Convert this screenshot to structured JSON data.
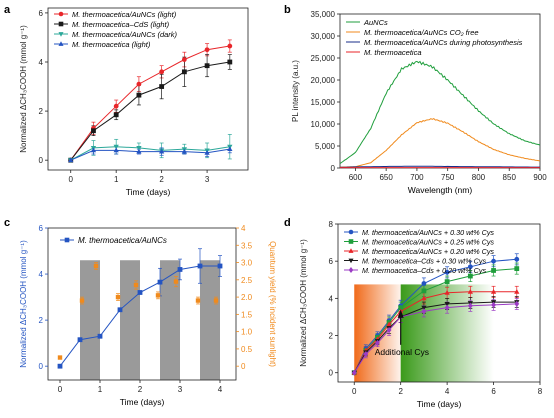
{
  "figure": {
    "panels": [
      {
        "letter": "a",
        "xlabel": "Time (days)",
        "ylabel": "Normalized ΔCH₃COOH (mmol g⁻¹)"
      },
      {
        "letter": "b",
        "xlabel": "Wavelength (nm)",
        "ylabel": "PL intensity (a.u.)"
      },
      {
        "letter": "c",
        "xlabel": "Time (days)",
        "ylabel": "Normalized ΔCH₃COOH (mmol g⁻¹)",
        "y2label": "Quantum yield (% incident sunlight)"
      },
      {
        "letter": "d",
        "xlabel": "Time (days)",
        "ylabel": "Normalized ΔCH₃COOH (mmol g⁻¹)",
        "annotation": "Additional Cys"
      }
    ]
  },
  "chart_data": [
    {
      "panel": "a",
      "type": "line",
      "xlabel": "Time (days)",
      "ylabel": "Normalized ΔCH₃COOH (mmol g⁻¹)",
      "xlim": [
        -0.5,
        3.9
      ],
      "ylim": [
        -0.4,
        6.2
      ],
      "xticks": [
        0,
        1,
        2,
        3
      ],
      "yticks": [
        0,
        2,
        4,
        6
      ],
      "legend_position": "top-left",
      "series": [
        {
          "name": "M. thermoacetica/AuNCs (light)",
          "color": "#e8262a",
          "marker": "circle",
          "x": [
            0,
            0.5,
            1,
            1.5,
            2,
            2.5,
            3,
            3.5
          ],
          "y": [
            0,
            1.3,
            2.2,
            3.1,
            3.6,
            4.1,
            4.5,
            4.65
          ],
          "err": [
            0,
            0.25,
            0.25,
            0.3,
            0.25,
            0.3,
            0.25,
            0.25
          ]
        },
        {
          "name": "M. thermoacetica–CdS (light)",
          "color": "#1a1a1a",
          "marker": "square",
          "x": [
            0,
            0.5,
            1,
            1.5,
            2,
            2.5,
            3,
            3.5
          ],
          "y": [
            0,
            1.2,
            1.85,
            2.65,
            3.0,
            3.6,
            3.85,
            4.0
          ],
          "err": [
            0,
            0.2,
            0.2,
            0.4,
            0.5,
            0.6,
            0.45,
            0.3
          ]
        },
        {
          "name": "M. thermoacetica/AuNCs (dark)",
          "color": "#2ca89a",
          "marker": "triangle-down",
          "x": [
            0,
            0.5,
            1,
            1.5,
            2,
            2.5,
            3,
            3.5
          ],
          "y": [
            0,
            0.5,
            0.55,
            0.5,
            0.4,
            0.45,
            0.4,
            0.55
          ],
          "err": [
            0,
            0.3,
            0.3,
            0.2,
            0.3,
            0.2,
            0.3,
            0.5
          ]
        },
        {
          "name": "M. thermoacetica (light)",
          "color": "#2454c2",
          "marker": "triangle-up",
          "x": [
            0,
            0.5,
            1,
            1.5,
            2,
            2.5,
            3,
            3.5
          ],
          "y": [
            0,
            0.4,
            0.4,
            0.35,
            0.35,
            0.35,
            0.3,
            0.45
          ],
          "err": [
            0,
            0.15,
            0.15,
            0.1,
            0.15,
            0.1,
            0.15,
            0.15
          ]
        }
      ]
    },
    {
      "panel": "b",
      "type": "line",
      "xlabel": "Wavelength (nm)",
      "ylabel": "PL intensity (a.u.)",
      "xlim": [
        575,
        900
      ],
      "ylim": [
        0,
        35000
      ],
      "xticks": [
        600,
        650,
        700,
        750,
        800,
        850,
        900
      ],
      "yticks": [
        0,
        5000,
        10000,
        15000,
        20000,
        25000,
        30000,
        35000
      ],
      "ytick_labels": [
        "0",
        "5,000",
        "10,000",
        "15,000",
        "20,000",
        "25,000",
        "30,000",
        "35,000"
      ],
      "legend_position": "top-left",
      "series": [
        {
          "name": "AuNCs",
          "color": "#1f9e3c",
          "x": [
            575,
            600,
            625,
            650,
            675,
            700,
            725,
            750,
            775,
            800,
            825,
            850,
            875,
            900
          ],
          "y": [
            1000,
            3500,
            9000,
            17000,
            22500,
            24200,
            23000,
            20000,
            16500,
            13000,
            10000,
            7800,
            6200,
            5200
          ]
        },
        {
          "name": "M. thermoacetica/AuNCs CO₂ free",
          "color": "#f08a1c",
          "x": [
            575,
            600,
            625,
            650,
            675,
            700,
            725,
            750,
            775,
            800,
            825,
            850,
            875,
            900
          ],
          "y": [
            200,
            300,
            1200,
            4000,
            7500,
            10300,
            11200,
            10200,
            8200,
            6000,
            4200,
            3000,
            2200,
            1600
          ]
        },
        {
          "name": "M. thermoacetica/AuNCs during photosynthesis",
          "color": "#1a2e8a",
          "x": [
            575,
            600,
            650,
            700,
            750,
            800,
            850,
            900
          ],
          "y": [
            150,
            250,
            350,
            400,
            350,
            300,
            250,
            200
          ]
        },
        {
          "name": "M. thermoacetica",
          "color": "#e8262a",
          "x": [
            575,
            600,
            650,
            700,
            750,
            800,
            850,
            900
          ],
          "y": [
            100,
            100,
            100,
            100,
            100,
            100,
            100,
            100
          ]
        }
      ]
    },
    {
      "panel": "c",
      "type": "line",
      "xlabel": "Time (days)",
      "ylabel": "Normalized ΔCH₃COOH (mmol g⁻¹)",
      "y2label": "Quantum yield (% incident sunlight)",
      "xlim": [
        -0.3,
        4.4
      ],
      "ylim": [
        -0.6,
        6.0
      ],
      "y2lim": [
        -0.4,
        4.0
      ],
      "xticks": [
        0,
        1,
        2,
        3,
        4
      ],
      "yticks": [
        0,
        2,
        4,
        6
      ],
      "y2ticks": [
        0,
        0.5,
        1.0,
        1.5,
        2.0,
        2.5,
        3.0,
        3.5,
        4.0
      ],
      "y2tick_labels": [
        "0",
        "0.5",
        "1.0",
        "1.5",
        "2.0",
        "2.5",
        "3.0",
        "3.5",
        "4"
      ],
      "light_periods": [
        [
          0.5,
          1.0
        ],
        [
          1.5,
          2.0
        ],
        [
          2.5,
          3.0
        ],
        [
          3.5,
          4.0
        ]
      ],
      "legend_position": "top-left",
      "series": [
        {
          "name": "M. thermoacetica/AuNCs",
          "color": "#2454c2",
          "marker": "square",
          "axis": "left",
          "x": [
            0,
            0.5,
            1,
            1.5,
            2,
            2.5,
            3,
            3.5,
            4
          ],
          "y": [
            0,
            1.15,
            1.3,
            2.45,
            3.2,
            3.65,
            4.2,
            4.35,
            4.35
          ],
          "err": [
            0,
            0,
            0,
            0,
            0,
            0.6,
            0.45,
            0.75,
            0.45
          ]
        },
        {
          "color": "#f08a1c",
          "marker": "square",
          "axis": "right",
          "x": [
            0,
            0.55,
            0.9,
            1.45,
            1.9,
            2.45,
            2.9,
            3.45,
            3.9
          ],
          "y": [
            0.25,
            1.9,
            2.9,
            2.0,
            2.35,
            2.05,
            2.45,
            1.9,
            1.9
          ],
          "err": [
            0,
            0.1,
            0.1,
            0.1,
            0.12,
            0.1,
            0.15,
            0.1,
            0.1
          ]
        }
      ]
    },
    {
      "panel": "d",
      "type": "line",
      "xlabel": "Time (days)",
      "ylabel": "Normalized ΔCH₃COOH (mmol g⁻¹)",
      "xlim": [
        -0.7,
        8.0
      ],
      "ylim": [
        -0.5,
        8.0
      ],
      "xticks": [
        0,
        2,
        4,
        6,
        8
      ],
      "yticks": [
        0,
        2,
        4,
        6,
        8
      ],
      "shaded_regions": [
        {
          "from": 0,
          "to": 2,
          "color": "#f06a1a"
        },
        {
          "from": 2,
          "to": 6,
          "color": "#3a9a1a"
        }
      ],
      "annotation": {
        "text": "Additional Cys",
        "x": 2,
        "y": 3.4
      },
      "legend_position": "top",
      "series": [
        {
          "name": "M. thermoacetica/AuNCs + 0.30 wt% Cys",
          "color": "#2454c2",
          "marker": "circle",
          "x": [
            0,
            0.5,
            1,
            1.5,
            2,
            3,
            4,
            5,
            6,
            7
          ],
          "y": [
            0,
            1.3,
            2.0,
            2.8,
            3.6,
            4.8,
            5.4,
            5.7,
            6.0,
            6.1
          ],
          "err": [
            0,
            0.2,
            0.2,
            0.3,
            0.3,
            0.3,
            0.3,
            0.3,
            0.3,
            0.3
          ]
        },
        {
          "name": "M. thermoacetica/AuNCs + 0.25 wt% Cys",
          "color": "#1f9e3c",
          "marker": "square",
          "x": [
            0,
            0.5,
            1,
            1.5,
            2,
            3,
            4,
            5,
            6,
            7
          ],
          "y": [
            0,
            1.2,
            1.9,
            2.7,
            3.5,
            4.4,
            4.9,
            5.2,
            5.5,
            5.6
          ],
          "err": [
            0,
            0.2,
            0.2,
            0.3,
            0.3,
            0.3,
            0.3,
            0.3,
            0.3,
            0.3
          ]
        },
        {
          "name": "M. thermoacetica/AuNCs + 0.20 wt% Cys",
          "color": "#e8262a",
          "marker": "triangle-up",
          "x": [
            0,
            0.5,
            1,
            1.5,
            2,
            3,
            4,
            5,
            6,
            7
          ],
          "y": [
            0,
            1.2,
            1.8,
            2.6,
            3.3,
            4.0,
            4.3,
            4.35,
            4.35,
            4.35
          ],
          "err": [
            0,
            0.2,
            0.2,
            0.3,
            0.3,
            0.3,
            0.3,
            0.3,
            0.3,
            0.3
          ]
        },
        {
          "name": "M. thermoacetica–Cds + 0.30 wt% Cys",
          "color": "#1a1a1a",
          "marker": "triangle-down",
          "x": [
            0,
            0.5,
            1,
            1.5,
            2,
            3,
            4,
            5,
            6,
            7
          ],
          "y": [
            0,
            1.1,
            1.7,
            2.4,
            3.0,
            3.5,
            3.7,
            3.75,
            3.8,
            3.8
          ],
          "err": [
            0,
            0.2,
            0.2,
            0.3,
            0.3,
            0.3,
            0.3,
            0.3,
            0.3,
            0.3
          ]
        },
        {
          "name": "M. thermoacetica–Cds + 0.20 wt% Cys",
          "color": "#9b3cc4",
          "marker": "diamond",
          "x": [
            0,
            0.5,
            1,
            1.5,
            2,
            3,
            4,
            5,
            6,
            7
          ],
          "y": [
            0,
            1.0,
            1.6,
            2.3,
            3.0,
            3.3,
            3.5,
            3.6,
            3.65,
            3.7
          ],
          "err": [
            0,
            0.2,
            0.2,
            0.3,
            0.3,
            0.3,
            0.3,
            0.3,
            0.3,
            0.3
          ]
        }
      ]
    }
  ]
}
